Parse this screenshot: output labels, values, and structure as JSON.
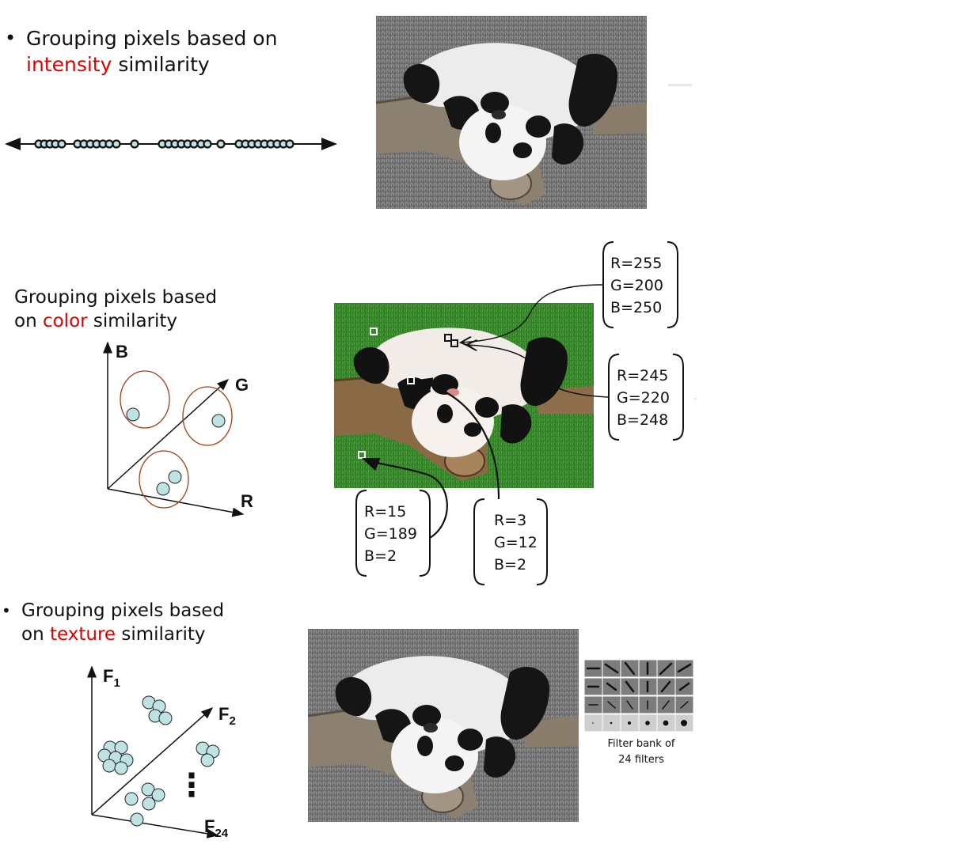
{
  "sections": {
    "intensity": {
      "bullet": "•",
      "line1": "Grouping pixels based on",
      "line2_keyword": "intensity",
      "line2_rest": " similarity"
    },
    "color": {
      "line1": "Grouping pixels based",
      "line2_prefix": "on ",
      "line2_keyword": "color",
      "line2_rest": " similarity",
      "axis_b": "B",
      "axis_g": "G",
      "axis_r": "R",
      "callouts": [
        {
          "r": "R=255",
          "g": "G=200",
          "b": "B=250"
        },
        {
          "r": "R=245",
          "g": "G=220",
          "b": "B=248"
        },
        {
          "r": "R=15",
          "g": "G=189",
          "b": "B=2"
        },
        {
          "r": "R=3",
          "g": "G=12",
          "b": "B=2"
        }
      ]
    },
    "texture": {
      "bullet": "•",
      "line1": "Grouping pixels based",
      "line2_prefix": "on ",
      "line2_keyword": "texture",
      "line2_rest": " similarity",
      "axis_f1": "F",
      "axis_f1_sub": "1",
      "axis_f2": "F",
      "axis_f2_sub": "2",
      "axis_f24": "F",
      "axis_f24_sub": "24",
      "ellipsis": "⋮",
      "filter_caption_1": "Filter bank of",
      "filter_caption_2": "24 filters"
    }
  },
  "colors": {
    "keyword": "#e00000",
    "point_fill": "#bfe3e3",
    "cluster_ring": "#a0401a"
  }
}
